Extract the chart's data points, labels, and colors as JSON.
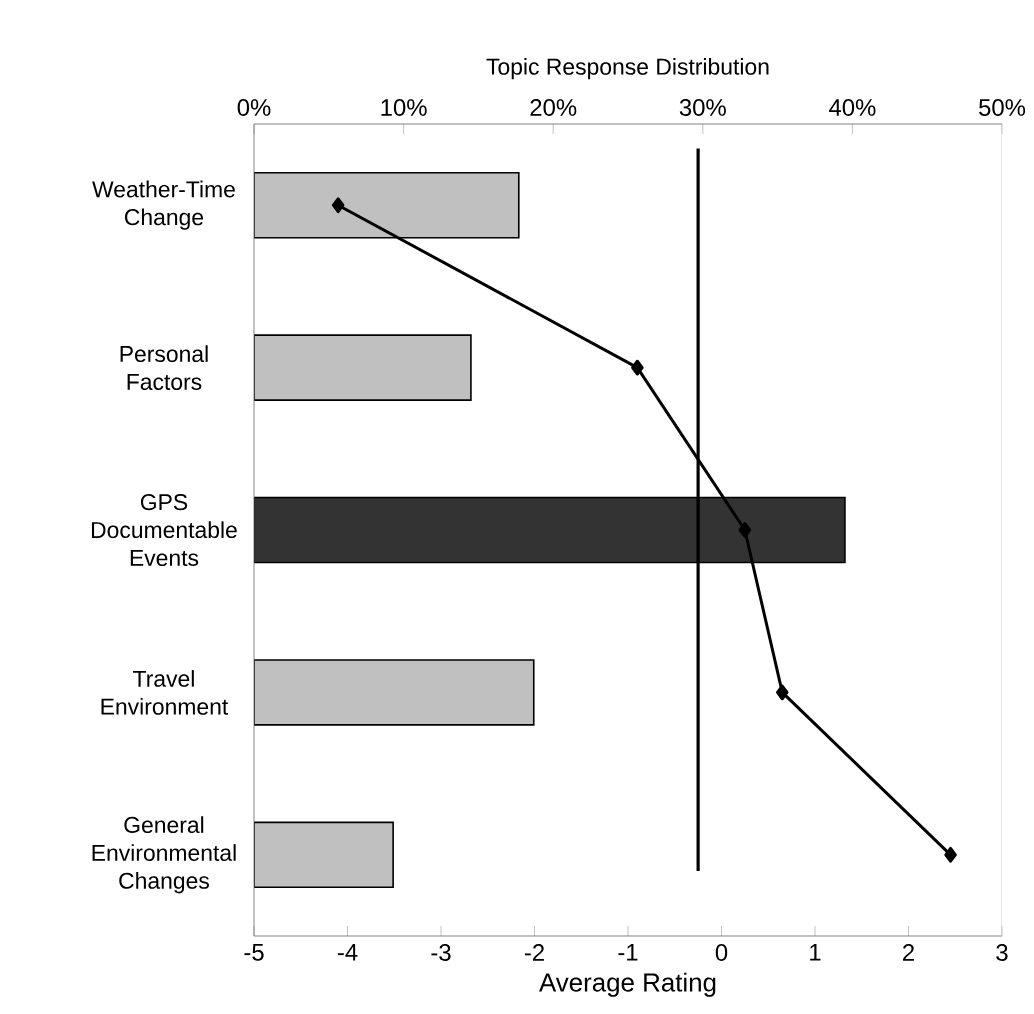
{
  "chart_data": {
    "type": "bar",
    "orientation": "horizontal",
    "x2label": "Topic Response Distribution",
    "xlabel": "Average Rating",
    "categories": [
      "Weather-Time Change",
      "Personal Factors",
      "GPS Documentable Events",
      "Travel Environment",
      "General Environmental Changes"
    ],
    "series": [
      {
        "axis": "x2",
        "colors": [
          "#c0c0c0",
          "#c0c0c0",
          "#333333",
          "#c0c0c0",
          "#c0c0c0"
        ],
        "values": [
          17.7,
          14.5,
          39.5,
          18.7,
          9.3
        ]
      },
      {
        "type": "line",
        "color": "#000000",
        "marker": "diamond",
        "line_style": "solid",
        "values": [
          -4.1,
          -0.9,
          0.25,
          0.65,
          2.45
        ]
      }
    ],
    "xlim": [
      -5,
      3
    ],
    "xticks": [
      -5,
      -4,
      -3,
      -2,
      -1,
      0,
      1,
      2,
      3
    ],
    "x2lim": [
      0,
      50
    ],
    "x2ticks": [
      {
        "value": 0,
        "label": "0%"
      },
      {
        "value": 10,
        "label": "10%"
      },
      {
        "value": 20,
        "label": "20%"
      },
      {
        "value": 30,
        "label": "30%"
      },
      {
        "value": 40,
        "label": "40%"
      },
      {
        "value": 50,
        "label": "50%"
      }
    ],
    "ref_lines": [
      {
        "axis": "x",
        "value": -0.25,
        "color": "#000000"
      }
    ],
    "grid": false
  }
}
